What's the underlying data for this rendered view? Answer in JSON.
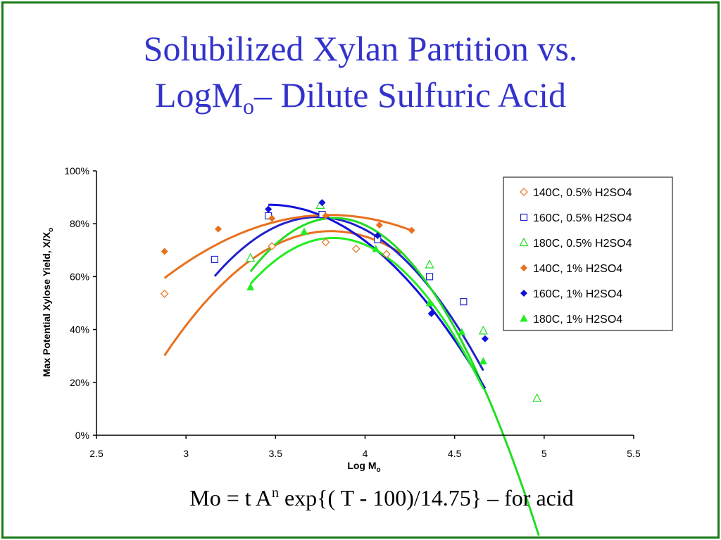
{
  "slide": {
    "title_line1": "Solubilized Xylan Partition vs.",
    "title_line2_pre": "LogM",
    "title_line2_sub": "o",
    "title_line2_post": "– Dilute Sulfuric Acid",
    "formula_pre": "Mo = t A",
    "formula_sup": "n",
    "formula_post": " exp{( T - 100)/14.75} – for acid",
    "border_color": "#1a7a1a",
    "title_color": "#3333cc"
  },
  "chart_data": {
    "type": "scatter",
    "title": "",
    "xlabel": "Log M",
    "xlabel_sub": "o",
    "ylabel": "Max Potential Xylose Yield, X/X",
    "ylabel_sub": "o",
    "xlim": [
      2.5,
      5.5
    ],
    "ylim": [
      0,
      1.0
    ],
    "x_ticks": [
      "2.5",
      "3",
      "3.5",
      "4",
      "4.5",
      "5",
      "5.5"
    ],
    "y_ticks": [
      "0%",
      "20%",
      "40%",
      "60%",
      "80%",
      "100%"
    ],
    "legend_position": "top-right",
    "grid": false,
    "series": [
      {
        "name": "140C, 0.5% H2SO4",
        "color": "#e8711f",
        "marker": "diamond-open",
        "points": [
          [
            2.88,
            0.535
          ],
          [
            3.48,
            0.715
          ],
          [
            3.78,
            0.73
          ],
          [
            3.95,
            0.705
          ],
          [
            4.12,
            0.685
          ]
        ],
        "fit": [
          -0.545,
          4.152,
          -7.136
        ]
      },
      {
        "name": "160C, 0.5% H2SO4",
        "color": "#2222cc",
        "marker": "square-open",
        "points": [
          [
            3.16,
            0.665
          ],
          [
            3.46,
            0.83
          ],
          [
            3.76,
            0.835
          ],
          [
            4.07,
            0.74
          ],
          [
            4.36,
            0.6
          ],
          [
            4.55,
            0.505
          ]
        ],
        "fit": [
          -0.678,
          5.064,
          -8.6305
        ]
      },
      {
        "name": "180C, 0.5% H2SO4",
        "color": "#22dd22",
        "marker": "triangle-open",
        "points": [
          [
            3.36,
            0.67
          ],
          [
            3.75,
            0.87
          ],
          [
            4.36,
            0.645
          ],
          [
            4.66,
            0.395
          ],
          [
            4.96,
            0.14
          ]
        ],
        "fit": [
          -0.9222,
          7.062,
          -12.698
        ]
      },
      {
        "name": "140C, 1% H2SO4",
        "color": "#e8711f",
        "marker": "diamond-filled",
        "points": [
          [
            2.88,
            0.695
          ],
          [
            3.18,
            0.78
          ],
          [
            3.48,
            0.82
          ],
          [
            3.78,
            0.83
          ],
          [
            4.08,
            0.795
          ],
          [
            4.26,
            0.775
          ]
        ],
        "fit": [
          -0.2804,
          2.1326,
          -3.2218
        ]
      },
      {
        "name": "160C, 1% H2SO4",
        "color": "#1111dd",
        "marker": "diamond-filled",
        "points": [
          [
            3.46,
            0.855
          ],
          [
            3.76,
            0.88
          ],
          [
            4.07,
            0.755
          ],
          [
            4.37,
            0.46
          ],
          [
            4.67,
            0.365
          ]
        ],
        "fit": [
          -0.4785,
          3.3166,
          -4.8755
        ]
      },
      {
        "name": "180C, 1% H2SO4",
        "color": "#22ee22",
        "marker": "triangle-filled",
        "points": [
          [
            3.36,
            0.56
          ],
          [
            3.66,
            0.77
          ],
          [
            4.06,
            0.705
          ],
          [
            4.36,
            0.5
          ],
          [
            4.54,
            0.39
          ],
          [
            4.66,
            0.28
          ]
        ],
        "fit": [
          -0.8117,
          6.2054,
          -11.1138
        ]
      }
    ],
    "fit_ranges": [
      [
        2.88,
        4.2
      ],
      [
        3.16,
        4.66
      ],
      [
        3.36,
        4.97
      ],
      [
        2.88,
        4.26
      ],
      [
        3.46,
        4.67
      ],
      [
        3.36,
        4.66
      ]
    ]
  }
}
